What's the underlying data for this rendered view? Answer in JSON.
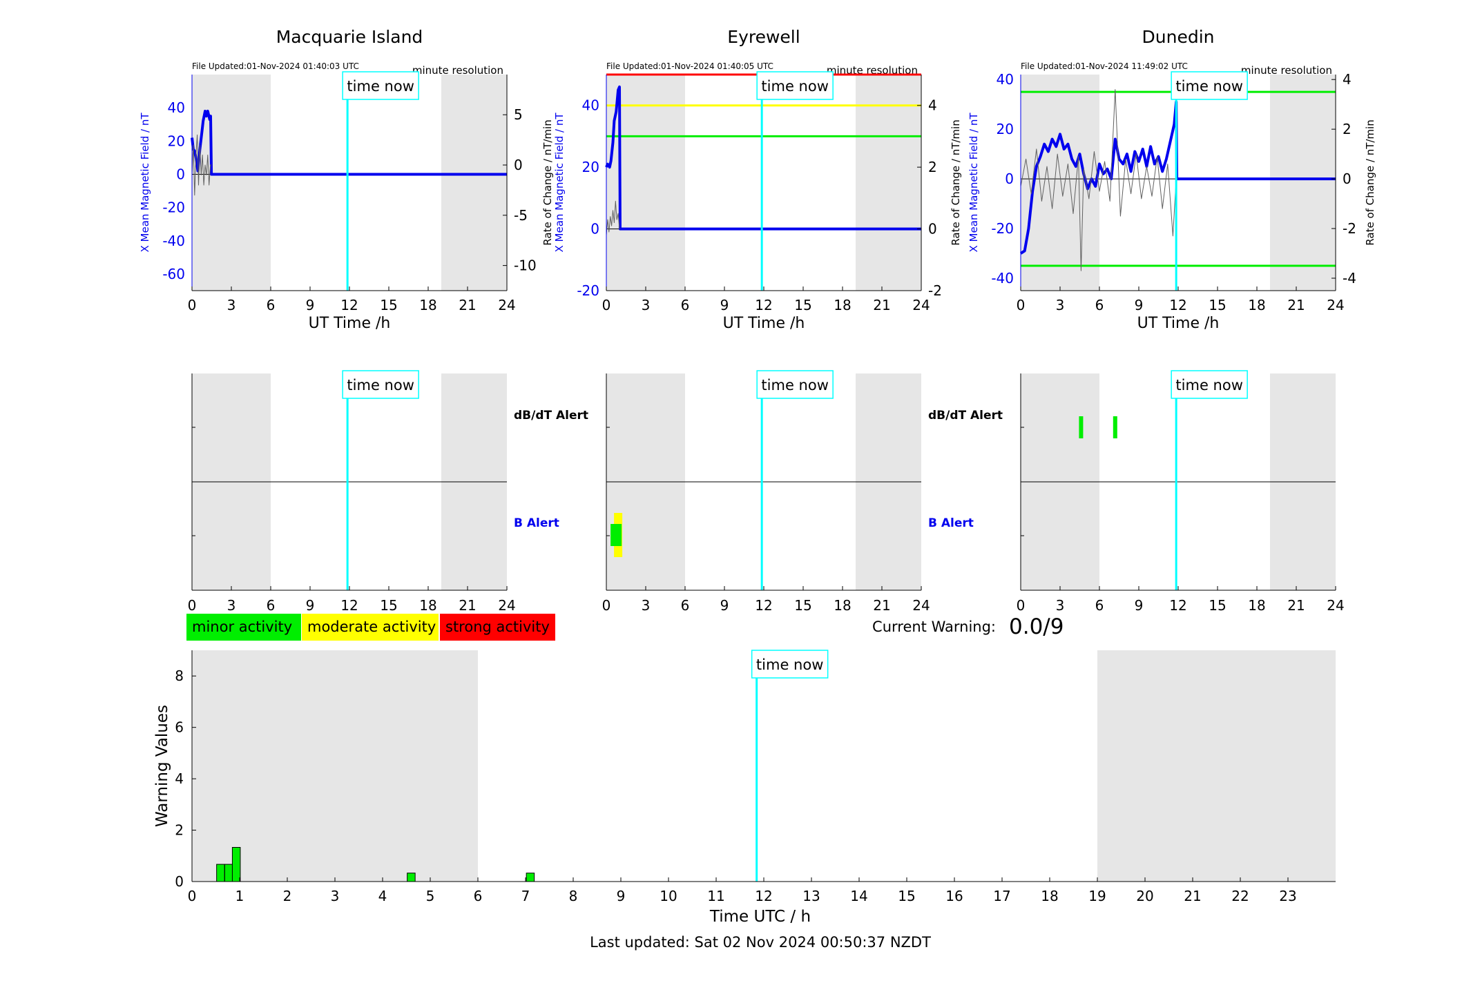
{
  "legend": [
    {
      "label": "minor activity",
      "color": "#00ee00"
    },
    {
      "label": "moderate activity",
      "color": "#ffff00"
    },
    {
      "label": "strong activity",
      "color": "#ff0000"
    }
  ],
  "current_warning": {
    "label": "Current Warning:",
    "value": "0.0/9"
  },
  "footer": {
    "last_updated": "Last updated: Sat 02 Nov 2024 00:50:37 NZDT"
  },
  "time_now_label": "time now",
  "alert_labels": {
    "dbdt": "dB/dT Alert",
    "b": "B Alert"
  },
  "colors": {
    "night_shade": "#e6e6e6",
    "field_line": "#0000ee",
    "rate_line": "#606060",
    "time_now_line": "#00ffff",
    "threshold_minor": "#00ee00",
    "threshold_moderate": "#ffff00",
    "threshold_strong": "#ff0000"
  },
  "chart_data": [
    {
      "type": "line",
      "title": "Macquarie Island",
      "file_updated": "File Updated:01-Nov-2024 01:40:03 UTC",
      "resolution": "minute resolution",
      "xlabel": "UT Time /h",
      "ylabel": "X Mean Magnetic Field / nT",
      "ylabel_right": "",
      "xlim": [
        0,
        24
      ],
      "xticks": [
        0,
        3,
        6,
        9,
        12,
        15,
        18,
        21,
        24
      ],
      "ylim": [
        -70,
        60
      ],
      "yticks": [
        -60,
        -40,
        -20,
        0,
        20,
        40
      ],
      "ylim_right": [
        -12.5,
        9
      ],
      "yticks_right": [
        -10,
        -5,
        0,
        5
      ],
      "night_shading": [
        [
          0,
          6
        ],
        [
          19,
          24
        ]
      ],
      "time_now": 11.85,
      "thresholds": [],
      "series": [
        {
          "role": "field",
          "x": [
            0,
            0.1,
            0.2,
            0.3,
            0.45,
            0.6,
            0.75,
            0.85,
            1.0,
            1.1,
            1.2,
            1.35,
            1.42,
            1.48,
            1.5,
            24
          ],
          "y": [
            22,
            15,
            14,
            10,
            2,
            15,
            25,
            32,
            38,
            35,
            38,
            33,
            35,
            0,
            0,
            0
          ]
        },
        {
          "role": "rate",
          "x": [
            0,
            0.1,
            0.2,
            0.3,
            0.4,
            0.5,
            0.6,
            0.7,
            0.8,
            0.9,
            1.0,
            1.1,
            1.2,
            1.3,
            1.4,
            1.5
          ],
          "y": [
            -1,
            2,
            -3,
            1,
            3,
            -2,
            2,
            -1,
            1,
            -2,
            0,
            -1,
            1,
            -2,
            0,
            0
          ]
        }
      ],
      "dbdt_alerts": [],
      "b_alerts": []
    },
    {
      "type": "line",
      "title": "Eyrewell",
      "file_updated": "File Updated:01-Nov-2024 01:40:05 UTC",
      "resolution": "minute resolution",
      "xlabel": "UT Time /h",
      "ylabel": "X Mean Magnetic Field / nT",
      "ylabel_right": "Rate of Change / nT/min",
      "xlabel_left_extra": "Rate of Change / nT/min",
      "xlim": [
        0,
        24
      ],
      "xticks": [
        0,
        3,
        6,
        9,
        12,
        15,
        18,
        21,
        24
      ],
      "ylim": [
        -20,
        50
      ],
      "yticks": [
        -20,
        0,
        20,
        40
      ],
      "ylim_right": [
        -2,
        5
      ],
      "yticks_right": [
        -2,
        0,
        2,
        4
      ],
      "night_shading": [
        [
          0,
          6
        ],
        [
          19,
          24
        ]
      ],
      "time_now": 11.85,
      "thresholds": [
        {
          "axis": "right",
          "value": 5,
          "color": "#ff0000"
        },
        {
          "axis": "right",
          "value": 4,
          "color": "#ffff00"
        },
        {
          "axis": "right",
          "value": 3,
          "color": "#00ee00"
        }
      ],
      "series": [
        {
          "role": "field",
          "x": [
            0,
            0.1,
            0.25,
            0.35,
            0.5,
            0.6,
            0.75,
            0.9,
            1.0,
            1.05,
            24
          ],
          "y": [
            20,
            21,
            20,
            22,
            28,
            35,
            38,
            45,
            46,
            0,
            0
          ]
        },
        {
          "role": "rate",
          "x": [
            0,
            0.1,
            0.2,
            0.3,
            0.4,
            0.5,
            0.6,
            0.7,
            0.8,
            0.9,
            1.0
          ],
          "y": [
            -0.2,
            0.3,
            -0.1,
            0.4,
            0.1,
            0.6,
            0.2,
            0.9,
            0.3,
            0.5,
            0
          ]
        }
      ],
      "dbdt_alerts": [],
      "b_alerts": [
        {
          "x": 0.9,
          "level": "moderate"
        },
        {
          "x": 0.9,
          "level": "minor"
        }
      ]
    },
    {
      "type": "line",
      "title": "Dunedin",
      "file_updated": "File Updated:01-Nov-2024 11:49:02 UTC",
      "resolution": "minute resolution",
      "xlabel": "UT Time /h",
      "ylabel": "X Mean Magnetic Field / nT",
      "ylabel_right": "Rate of Change / nT/min",
      "xlim": [
        0,
        24
      ],
      "xticks": [
        0,
        3,
        6,
        9,
        12,
        15,
        18,
        21,
        24
      ],
      "ylim": [
        -45,
        42
      ],
      "yticks": [
        -40,
        -20,
        0,
        20,
        40
      ],
      "ylim_right": [
        -4.5,
        4.2
      ],
      "yticks_right": [
        -4,
        -2,
        0,
        2,
        4
      ],
      "night_shading": [
        [
          0,
          6
        ],
        [
          19,
          24
        ]
      ],
      "time_now": 11.85,
      "thresholds": [
        {
          "axis": "right",
          "value": 3.5,
          "color": "#00ee00"
        },
        {
          "axis": "right",
          "value": -3.5,
          "color": "#00ee00"
        }
      ],
      "series": [
        {
          "role": "field",
          "x": [
            0,
            0.3,
            0.6,
            0.9,
            1.2,
            1.5,
            1.8,
            2.1,
            2.4,
            2.7,
            3.0,
            3.3,
            3.6,
            3.9,
            4.2,
            4.5,
            4.8,
            5.1,
            5.4,
            5.7,
            6.0,
            6.3,
            6.6,
            6.9,
            7.2,
            7.5,
            7.8,
            8.1,
            8.4,
            8.7,
            9.0,
            9.3,
            9.6,
            9.9,
            10.2,
            10.5,
            10.8,
            11.1,
            11.4,
            11.7,
            11.85,
            11.9,
            24
          ],
          "y": [
            -30,
            -29,
            -20,
            -5,
            5,
            9,
            14,
            11,
            16,
            13,
            18,
            12,
            14,
            8,
            5,
            10,
            2,
            -4,
            0,
            -3,
            6,
            2,
            4,
            0,
            16,
            8,
            6,
            10,
            3,
            11,
            7,
            12,
            5,
            13,
            6,
            9,
            3,
            8,
            15,
            22,
            31,
            0,
            0
          ]
        },
        {
          "role": "rate",
          "x": [
            0,
            0.4,
            0.8,
            1.2,
            1.6,
            2.0,
            2.4,
            2.8,
            3.2,
            3.6,
            4.0,
            4.4,
            4.6,
            4.8,
            5.2,
            5.6,
            6.0,
            6.4,
            6.8,
            7.2,
            7.6,
            8.0,
            8.4,
            8.8,
            9.2,
            9.6,
            10.0,
            10.4,
            10.8,
            11.2,
            11.6,
            11.85
          ],
          "y": [
            -0.3,
            0.8,
            -0.6,
            1.2,
            -0.9,
            0.5,
            -1.2,
            1.0,
            -0.7,
            0.6,
            -1.4,
            0.9,
            -3.7,
            0.4,
            -0.8,
            1.1,
            -0.5,
            0.7,
            -0.9,
            3.6,
            -1.5,
            0.8,
            -0.6,
            1.0,
            -0.8,
            0.5,
            -0.7,
            0.9,
            -1.2,
            0.6,
            -2.3,
            0
          ]
        }
      ],
      "dbdt_alerts": [
        {
          "x": 4.6,
          "level": "minor"
        },
        {
          "x": 7.2,
          "level": "minor"
        }
      ],
      "b_alerts": []
    },
    {
      "type": "bar",
      "title": "",
      "xlabel": "Time UTC / h",
      "ylabel": "Warning Values",
      "xlim": [
        0,
        24
      ],
      "xticks": [
        0,
        1,
        2,
        3,
        4,
        5,
        6,
        7,
        8,
        9,
        10,
        11,
        12,
        13,
        14,
        15,
        16,
        17,
        18,
        19,
        20,
        21,
        22,
        23
      ],
      "ylim": [
        0,
        9
      ],
      "yticks": [
        0,
        2,
        4,
        6,
        8
      ],
      "night_shading": [
        [
          0,
          6
        ],
        [
          19,
          24
        ]
      ],
      "time_now": 11.85,
      "bars": [
        {
          "x": 0.6,
          "value": 0.67
        },
        {
          "x": 0.77,
          "value": 0.67
        },
        {
          "x": 0.93,
          "value": 1.33
        },
        {
          "x": 4.6,
          "value": 0.33
        },
        {
          "x": 7.1,
          "value": 0.33
        }
      ],
      "bar_color": "#00ee00"
    }
  ]
}
